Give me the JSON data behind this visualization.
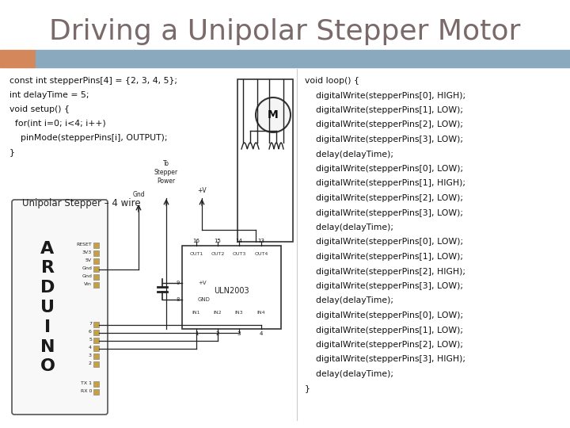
{
  "title": "Driving a Unipolar Stepper Motor",
  "title_color": "#7a6a6a",
  "title_fontsize": 26,
  "bg_color": "#ffffff",
  "header_bar_color": "#8aa8be",
  "header_bar_left_color": "#d4875a",
  "left_code": [
    "const int stepperPins[4] = {2, 3, 4, 5};",
    "int delayTime = 5;",
    "void setup() {",
    "  for(int i=0; i<4; i++)",
    "    pinMode(stepperPins[i], OUTPUT);",
    "}"
  ],
  "right_code": [
    "void loop() {",
    "    digitalWrite(stepperPins[0], HIGH);",
    "    digitalWrite(stepperPins[1], LOW);",
    "    digitalWrite(stepperPins[2], LOW);",
    "    digitalWrite(stepperPins[3], LOW);",
    "    delay(delayTime);",
    "    digitalWrite(stepperPins[0], LOW);",
    "    digitalWrite(stepperPins[1], HIGH);",
    "    digitalWrite(stepperPins[2], LOW);",
    "    digitalWrite(stepperPins[3], LOW);",
    "    delay(delayTime);",
    "    digitalWrite(stepperPins[0], LOW);",
    "    digitalWrite(stepperPins[1], LOW);",
    "    digitalWrite(stepperPins[2], HIGH);",
    "    digitalWrite(stepperPins[3], LOW);",
    "    delay(delayTime);",
    "    digitalWrite(stepperPins[0], LOW);",
    "    digitalWrite(stepperPins[1], LOW);",
    "    digitalWrite(stepperPins[2], LOW);",
    "    digitalWrite(stepperPins[3], HIGH);",
    "    delay(delayTime);",
    "}"
  ],
  "code_fontsize": 7.8,
  "code_color": "#111111",
  "diagram_label": "Unipolar Stepper – 4 wire",
  "diagram_label_fontsize": 8.5,
  "pin_labels_left": [
    "RESET",
    "3V3",
    "5V",
    "Gnd",
    "Gnd",
    "Vin"
  ],
  "pin_labels_bottom": [
    "TX 1",
    "RX 0"
  ]
}
